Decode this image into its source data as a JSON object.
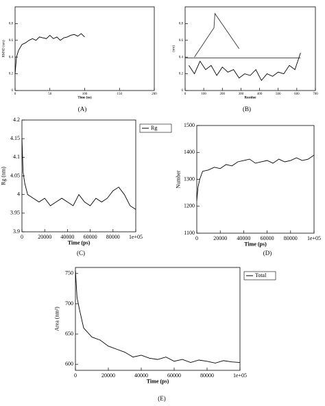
{
  "chart_data": [
    {
      "type": "line",
      "label": "(A)",
      "x_label": "Time (ns)",
      "y_label": "RMSD (nm)",
      "xlim": [
        0,
        200
      ],
      "xticks": [
        0,
        50,
        100,
        150,
        200
      ],
      "ylim": [
        0,
        1
      ],
      "yticks": [
        0,
        0.2,
        0.4,
        0.6,
        0.8
      ],
      "series": [
        {
          "color": "#000000",
          "x": [
            0,
            2,
            5,
            10,
            15,
            20,
            25,
            30,
            35,
            40,
            45,
            50,
            55,
            60,
            65,
            70,
            75,
            80,
            85,
            90,
            95,
            100
          ],
          "values": [
            0.2,
            0.4,
            0.48,
            0.55,
            0.57,
            0.6,
            0.62,
            0.6,
            0.64,
            0.63,
            0.62,
            0.66,
            0.62,
            0.64,
            0.6,
            0.63,
            0.64,
            0.66,
            0.67,
            0.65,
            0.68,
            0.64
          ]
        }
      ]
    },
    {
      "type": "line",
      "label": "(B)",
      "x_label": "Residue",
      "y_label": "(nm)",
      "xlim": [
        0,
        700
      ],
      "xticks": [
        0,
        100,
        200,
        300,
        400,
        500,
        600,
        700
      ],
      "ylim": [
        0,
        1
      ],
      "yticks": [
        0,
        0.2,
        0.4,
        0.6,
        0.8
      ],
      "series": [
        {
          "color": "#000000",
          "x": [
            20,
            50,
            80,
            110,
            140,
            170,
            200,
            230,
            260,
            290,
            320,
            350,
            380,
            410,
            440,
            470,
            500,
            530,
            560,
            590,
            620
          ],
          "values": [
            0.3,
            0.2,
            0.35,
            0.25,
            0.3,
            0.18,
            0.28,
            0.22,
            0.25,
            0.15,
            0.2,
            0.18,
            0.25,
            0.12,
            0.2,
            0.17,
            0.22,
            0.2,
            0.3,
            0.25,
            0.45
          ]
        },
        {
          "color": "#333333",
          "x": [
            50,
            155,
            160,
            290
          ],
          "values": [
            0.4,
            0.75,
            0.92,
            0.5
          ]
        },
        {
          "color": "#333333",
          "x": [
            0,
            620
          ],
          "values": [
            0.39,
            0.39
          ]
        }
      ]
    },
    {
      "type": "line",
      "label": "(C)",
      "x_label": "Time (ps)",
      "y_label": "Rg (nm)",
      "legend": "upper right",
      "xlim": [
        0,
        100000
      ],
      "xticks": [
        0,
        20000,
        40000,
        60000,
        80000,
        {
          "value": 100000,
          "label": "1e+05"
        }
      ],
      "ylim": [
        3.9,
        4.2
      ],
      "yticks": [
        3.9,
        3.95,
        4,
        4.05,
        4.1,
        4.15,
        4.2
      ],
      "series": [
        {
          "name": "Rg",
          "color": "#000000",
          "x": [
            0,
            1000,
            2500,
            5000,
            10000,
            15000,
            20000,
            25000,
            30000,
            35000,
            40000,
            45000,
            50000,
            55000,
            60000,
            65000,
            70000,
            75000,
            80000,
            85000,
            90000,
            95000,
            100000
          ],
          "values": [
            4.15,
            4.06,
            4.03,
            4.0,
            3.99,
            3.98,
            3.99,
            3.97,
            3.98,
            3.99,
            3.98,
            3.97,
            4.0,
            3.98,
            3.97,
            3.99,
            3.98,
            3.99,
            4.01,
            4.02,
            4.0,
            3.97,
            3.96
          ]
        }
      ]
    },
    {
      "type": "line",
      "label": "(D)",
      "x_label": "Time (ps)",
      "y_label": "Number",
      "xlim": [
        0,
        100000
      ],
      "xticks": [
        0,
        20000,
        40000,
        60000,
        80000,
        {
          "value": 100000,
          "label": "1e+05"
        }
      ],
      "ylim": [
        1100,
        1500
      ],
      "yticks": [
        1100,
        1200,
        1300,
        1400,
        1500
      ],
      "series": [
        {
          "color": "#000000",
          "x": [
            0,
            1000,
            2500,
            5000,
            10000,
            15000,
            20000,
            25000,
            30000,
            35000,
            40000,
            45000,
            50000,
            55000,
            60000,
            65000,
            70000,
            75000,
            80000,
            85000,
            90000,
            95000,
            100000
          ],
          "values": [
            1220,
            1270,
            1300,
            1330,
            1335,
            1345,
            1340,
            1355,
            1350,
            1365,
            1370,
            1375,
            1360,
            1365,
            1370,
            1360,
            1375,
            1365,
            1370,
            1380,
            1370,
            1375,
            1390
          ]
        }
      ]
    },
    {
      "type": "line",
      "label": "(E)",
      "x_label": "Time (ps)",
      "y_label": "Area (nm²)",
      "legend": "upper right",
      "xlim": [
        0,
        100000
      ],
      "xticks": [
        0,
        20000,
        40000,
        60000,
        80000,
        {
          "value": 100000,
          "label": "1e+05"
        }
      ],
      "ylim": [
        590,
        760
      ],
      "yticks": [
        600,
        650,
        700,
        750
      ],
      "series": [
        {
          "name": "Total",
          "color": "#000000",
          "x": [
            0,
            1000,
            2500,
            5000,
            10000,
            15000,
            20000,
            25000,
            30000,
            35000,
            40000,
            45000,
            50000,
            55000,
            60000,
            65000,
            70000,
            75000,
            80000,
            85000,
            90000,
            95000,
            100000
          ],
          "values": [
            755,
            710,
            690,
            660,
            645,
            640,
            630,
            625,
            620,
            612,
            615,
            610,
            608,
            612,
            605,
            608,
            603,
            607,
            605,
            602,
            606,
            604,
            603
          ]
        }
      ]
    }
  ]
}
